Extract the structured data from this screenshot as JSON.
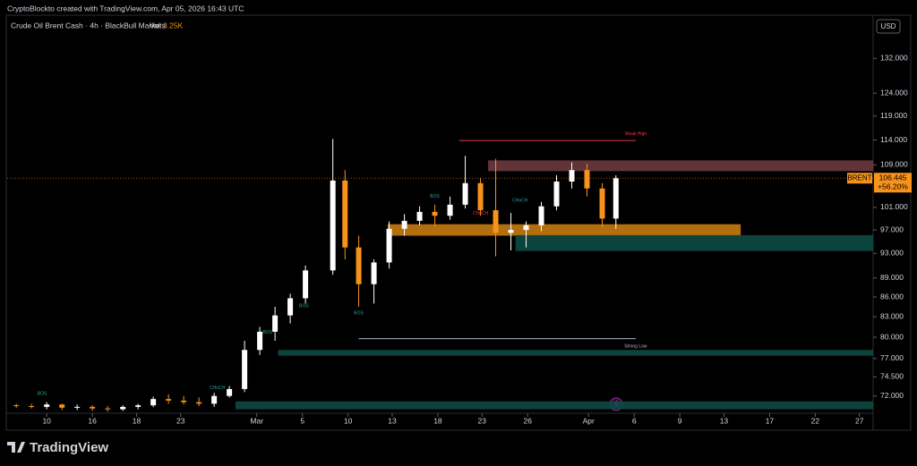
{
  "header": {
    "credit": "CryptoBlockto created with TradingView.com, Apr 05, 2026 16:43 UTC"
  },
  "footer": {
    "brand": "TradingView"
  },
  "chart_data": {
    "type": "candlestick",
    "title": "Crude Oil Brent Cash · 4h · BlackBull Markets",
    "volume_prefix": "Vol",
    "volume": "3.25K",
    "currency": "USD",
    "symbol": "BRENT",
    "last_change": "+56.20%",
    "log_scale": true,
    "grid": false,
    "up_color": "#ffffff",
    "down_color": "#f7931a",
    "xlim": [
      -2.6,
      54.3
    ],
    "xticks": [
      {
        "value": 0,
        "label": "10"
      },
      {
        "value": 3,
        "label": "16"
      },
      {
        "value": 5.9,
        "label": "18"
      },
      {
        "value": 8.8,
        "label": "23"
      },
      {
        "value": 13.8,
        "label": "Mar"
      },
      {
        "value": 16.8,
        "label": "5"
      },
      {
        "value": 19.8,
        "label": "10"
      },
      {
        "value": 22.7,
        "label": "13"
      },
      {
        "value": 25.7,
        "label": "18"
      },
      {
        "value": 28.6,
        "label": "23"
      },
      {
        "value": 31.6,
        "label": "26"
      },
      {
        "value": 35.6,
        "label": "Apr"
      },
      {
        "value": 38.6,
        "label": "6"
      },
      {
        "value": 41.6,
        "label": "9"
      },
      {
        "value": 44.5,
        "label": "13"
      },
      {
        "value": 47.5,
        "label": "17"
      },
      {
        "value": 50.5,
        "label": "22"
      },
      {
        "value": 53.4,
        "label": "27"
      }
    ],
    "ylim": [
      69.8,
      142.4
    ],
    "yticks": [
      {
        "value": 132,
        "label": "132.000"
      },
      {
        "value": 124,
        "label": "124.000"
      },
      {
        "value": 119,
        "label": "119.000"
      },
      {
        "value": 114,
        "label": "114.000"
      },
      {
        "value": 109,
        "label": "109.000"
      },
      {
        "value": 101,
        "label": "101.000"
      },
      {
        "value": 97,
        "label": "97.000"
      },
      {
        "value": 93,
        "label": "93.000"
      },
      {
        "value": 89,
        "label": "89.000"
      },
      {
        "value": 86,
        "label": "86.000"
      },
      {
        "value": 83,
        "label": "83.000"
      },
      {
        "value": 80,
        "label": "80.000"
      },
      {
        "value": 77,
        "label": "77.000"
      },
      {
        "value": 74.5,
        "label": "74.500"
      },
      {
        "value": 72,
        "label": "72.000"
      }
    ],
    "x": [
      -2,
      -1,
      0,
      1,
      2,
      3,
      4,
      5,
      6,
      7,
      8,
      9,
      10,
      11,
      12,
      13,
      14,
      15,
      16,
      17,
      18.8,
      19.6,
      20.5,
      21.5,
      22.5,
      23.5,
      24.5,
      25.5,
      26.5,
      27.5,
      28.5,
      29.5,
      30.5,
      31.5,
      32.5,
      33.5,
      34.5,
      35.5,
      36.5,
      37.4
    ],
    "open": [
      70.8,
      70.7,
      70.6,
      70.9,
      70.5,
      70.6,
      70.4,
      70.3,
      70.6,
      70.8,
      71.6,
      71.4,
      71.2,
      71.0,
      72.0,
      72.9,
      78.2,
      80.8,
      83.2,
      85.8,
      90.2,
      106,
      94,
      88,
      91.5,
      97.2,
      98.6,
      100.2,
      99.5,
      101.5,
      105.5,
      100.5,
      96.5,
      97,
      97.8,
      101.2,
      105.8,
      108,
      104.5,
      99
    ],
    "high": [
      71,
      71,
      71.2,
      71,
      70.9,
      70.8,
      70.7,
      70.8,
      71.0,
      71.9,
      72.2,
      72.0,
      71.8,
      72.4,
      73.3,
      79.5,
      81.5,
      84.5,
      86.5,
      91,
      114.2,
      108,
      96,
      92,
      98.5,
      99.8,
      101.2,
      101.5,
      103,
      110.8,
      106.5,
      110.2,
      100,
      98.5,
      102,
      107,
      109.5,
      109.2,
      105.5,
      107
    ],
    "low": [
      70.5,
      70.4,
      70.3,
      70.2,
      70.2,
      70.1,
      70.0,
      70.1,
      70.3,
      70.6,
      71.0,
      70.9,
      70.7,
      70.6,
      71.8,
      72.5,
      77.5,
      79.5,
      82,
      85,
      89.5,
      92,
      84.5,
      85,
      90.5,
      96,
      97.8,
      97.6,
      98.8,
      100.8,
      99.5,
      92.5,
      93.5,
      94,
      96.8,
      100.5,
      104.5,
      103,
      97.5,
      97.2
    ],
    "close": [
      70.7,
      70.6,
      70.9,
      70.5,
      70.6,
      70.4,
      70.3,
      70.6,
      70.8,
      71.6,
      71.4,
      71.2,
      71.0,
      72.0,
      72.9,
      78.2,
      80.8,
      83.2,
      85.8,
      90.2,
      106,
      94,
      88,
      91.5,
      97.2,
      98.6,
      100.2,
      99.5,
      101.5,
      105.5,
      100.5,
      96.5,
      97,
      97.8,
      101.2,
      105.8,
      108,
      104.5,
      99,
      106.445
    ],
    "zones": [
      {
        "x0": 29,
        "x1": 54.3,
        "low": 107.8,
        "high": 109.9,
        "color": "#6b3a3f"
      },
      {
        "x0": 22.4,
        "x1": 45.6,
        "low": 96.0,
        "high": 98.0,
        "color": "#c77a0f"
      },
      {
        "x0": 30.8,
        "x1": 54.3,
        "low": 93.4,
        "high": 96.1,
        "color": "#0d4a44"
      },
      {
        "x0": 15.2,
        "x1": 54.3,
        "low": 77.4,
        "high": 78.2,
        "color": "#0d4a44"
      },
      {
        "x0": 12.4,
        "x1": 54.3,
        "low": 70.3,
        "high": 71.3,
        "color": "#0d4a44"
      }
    ],
    "levels": [
      {
        "x0": 27.1,
        "x1": 38.7,
        "price": 113.9,
        "color": "#f23645"
      },
      {
        "x0": 20.5,
        "x1": 38.7,
        "price": 79.8,
        "color": "#b2b5be"
      }
    ],
    "annotations": [
      {
        "text": "BOS",
        "x": -0.3,
        "price": 72.3,
        "color": "#26a69a"
      },
      {
        "text": "CHoCH",
        "x": 11.2,
        "price": 73.05,
        "color": "#26a69a"
      },
      {
        "text": "BOS",
        "x": 14.5,
        "price": 80.7,
        "color": "#26a69a"
      },
      {
        "text": "BOS",
        "x": 16.9,
        "price": 84.6,
        "color": "#26a69a"
      },
      {
        "text": "BOS",
        "x": 20.5,
        "price": 83.5,
        "color": "#26a69a"
      },
      {
        "text": "BOS",
        "x": 25.5,
        "price": 103,
        "color": "#26a69a"
      },
      {
        "text": "CHoCH",
        "x": 28.5,
        "price": 99.9,
        "color": "#f23645"
      },
      {
        "text": "CHoCH",
        "x": 31.1,
        "price": 102.3,
        "color": "#26a69a"
      },
      {
        "text": "Weak High",
        "x": 38.7,
        "price": 115.3,
        "color": "#f23645"
      },
      {
        "text": "Strong Low",
        "x": 38.7,
        "price": 78.7,
        "color": "#b2b5be"
      }
    ]
  }
}
